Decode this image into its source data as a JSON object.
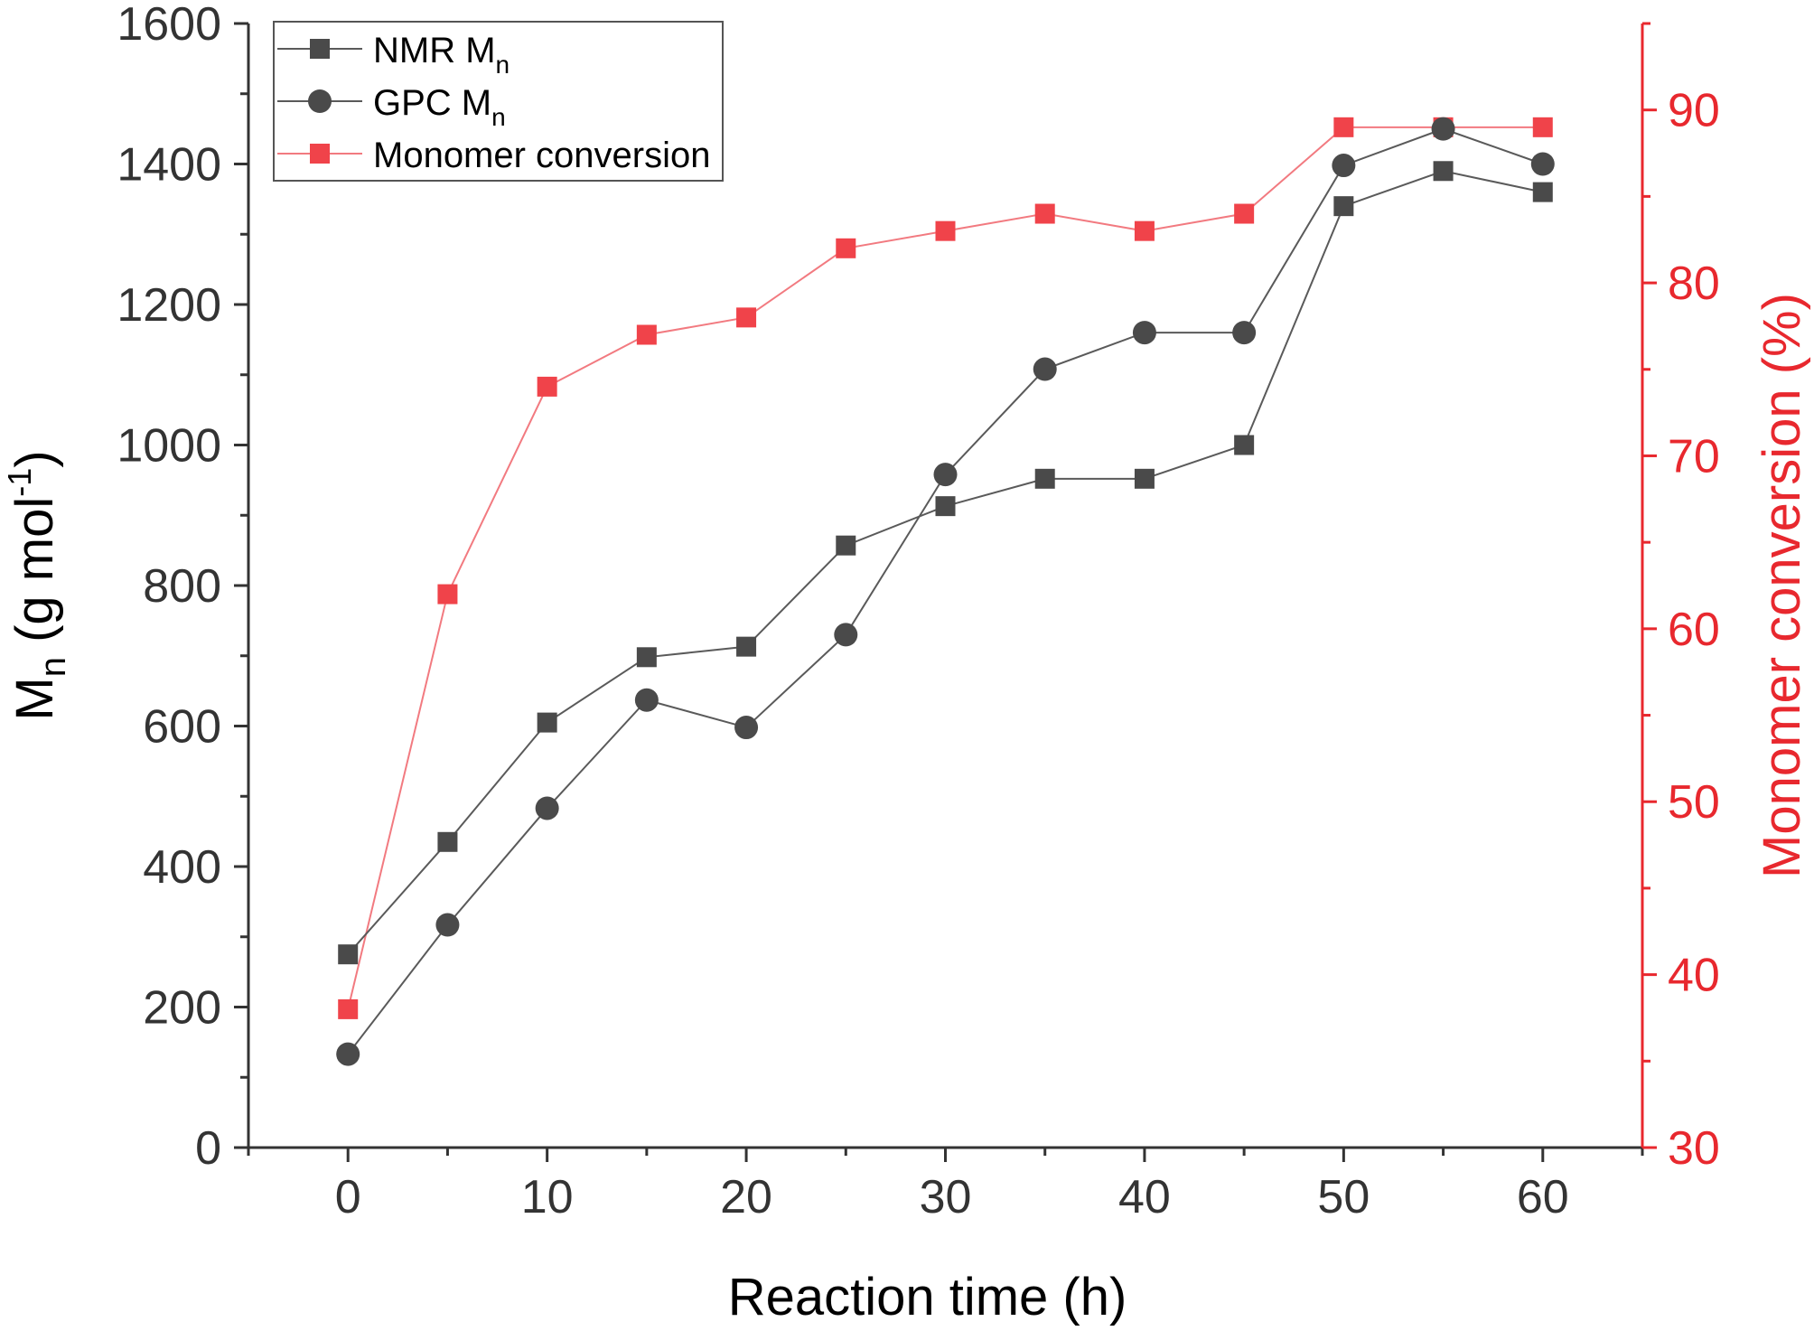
{
  "chart_data": {
    "type": "line",
    "xlabel": "Reaction time (h)",
    "ylabel": {
      "base": "M",
      "sub": "n",
      "rest": " (g mol",
      "sup": "-1",
      "end": ")"
    },
    "y2label": "Monomer conversion (%)",
    "xlim": [
      -5,
      65
    ],
    "ylim": [
      0,
      1600
    ],
    "y2lim": [
      30,
      95
    ],
    "xticks": [
      0,
      10,
      20,
      30,
      40,
      50,
      60
    ],
    "yticks": [
      0,
      200,
      400,
      600,
      800,
      1000,
      1200,
      1400,
      1600
    ],
    "y2ticks": [
      30,
      40,
      50,
      60,
      70,
      80,
      90
    ],
    "x": [
      0,
      5,
      10,
      15,
      20,
      25,
      30,
      35,
      40,
      45,
      50,
      55,
      60
    ],
    "series": [
      {
        "name": {
          "base": "NMR M",
          "sub": "n"
        },
        "axis": "left",
        "marker": "square",
        "color": "#4a4a4a",
        "values": [
          275,
          435,
          605,
          698,
          713,
          857,
          913,
          952,
          952,
          1000,
          1340,
          1390,
          1360
        ]
      },
      {
        "name": {
          "base": "GPC M",
          "sub": "n"
        },
        "axis": "left",
        "marker": "circle",
        "color": "#4a4a4a",
        "values": [
          133,
          317,
          483,
          637,
          598,
          730,
          958,
          1108,
          1160,
          1160,
          1398,
          1450,
          1400
        ]
      },
      {
        "name": {
          "base": "Monomer conversion",
          "sub": ""
        },
        "axis": "right",
        "marker": "square",
        "color": "#f0434a",
        "values": [
          38,
          62,
          74,
          77,
          78,
          82,
          83,
          84,
          83,
          84,
          89,
          89,
          89
        ]
      }
    ],
    "legend_position": "top-left",
    "grid": false,
    "colors": {
      "left_axis": "#333333",
      "right_axis": "#e8282e"
    }
  }
}
